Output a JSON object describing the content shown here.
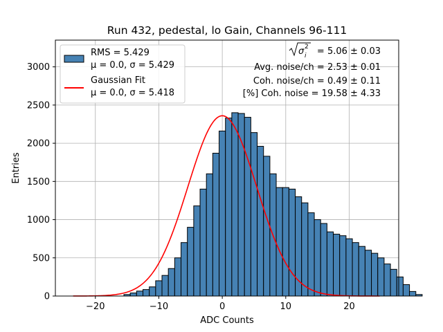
{
  "chart_data": {
    "type": "bar",
    "title": "Run 432, pedestal, lo Gain, Channels 96-111",
    "xlabel": "ADC Counts",
    "ylabel": "Entries",
    "xlim": [
      -26.3,
      27.8
    ],
    "ylim": [
      0,
      3350
    ],
    "xticks": [
      -20,
      -10,
      0,
      10,
      20
    ],
    "yticks": [
      0,
      500,
      1000,
      1500,
      2000,
      2500,
      3000
    ],
    "grid": true,
    "bar_color": "#4682b4",
    "fit_color": "#ff0000",
    "bins": {
      "edges_start": -15.5,
      "width": 1,
      "counts": [
        20,
        40,
        65,
        85,
        120,
        200,
        270,
        360,
        500,
        700,
        900,
        1180,
        1400,
        1600,
        1870,
        2160,
        2330,
        2400,
        2390,
        2340,
        2140,
        1960,
        1830,
        1600,
        1420,
        1420,
        1400,
        1300,
        1220,
        1090,
        1000,
        950,
        840,
        810,
        790,
        750,
        700,
        650,
        600,
        560,
        500,
        420,
        350,
        250,
        150,
        60,
        20
      ]
    },
    "fit": {
      "type": "gaussian",
      "amplitude": 2360,
      "mu": 0.0,
      "sigma": 5.418,
      "x_range": [
        -23.5,
        24.8
      ]
    },
    "legend": {
      "placement": "top-left",
      "entries": [
        {
          "line1": "RMS = 5.429",
          "line2": "μ = 0.0, σ = 5.429"
        },
        {
          "line1": "Gaussian Fit",
          "line2": "μ = 0.0, σ = 5.418"
        }
      ]
    },
    "annotations": [
      "= 5.06 ± 0.03",
      "Avg. noise/ch = 2.53 ± 0.01",
      "Coh. noise/ch = 0.49 ± 0.11",
      "[%] Coh. noise = 19.58 ± 4.33"
    ]
  }
}
